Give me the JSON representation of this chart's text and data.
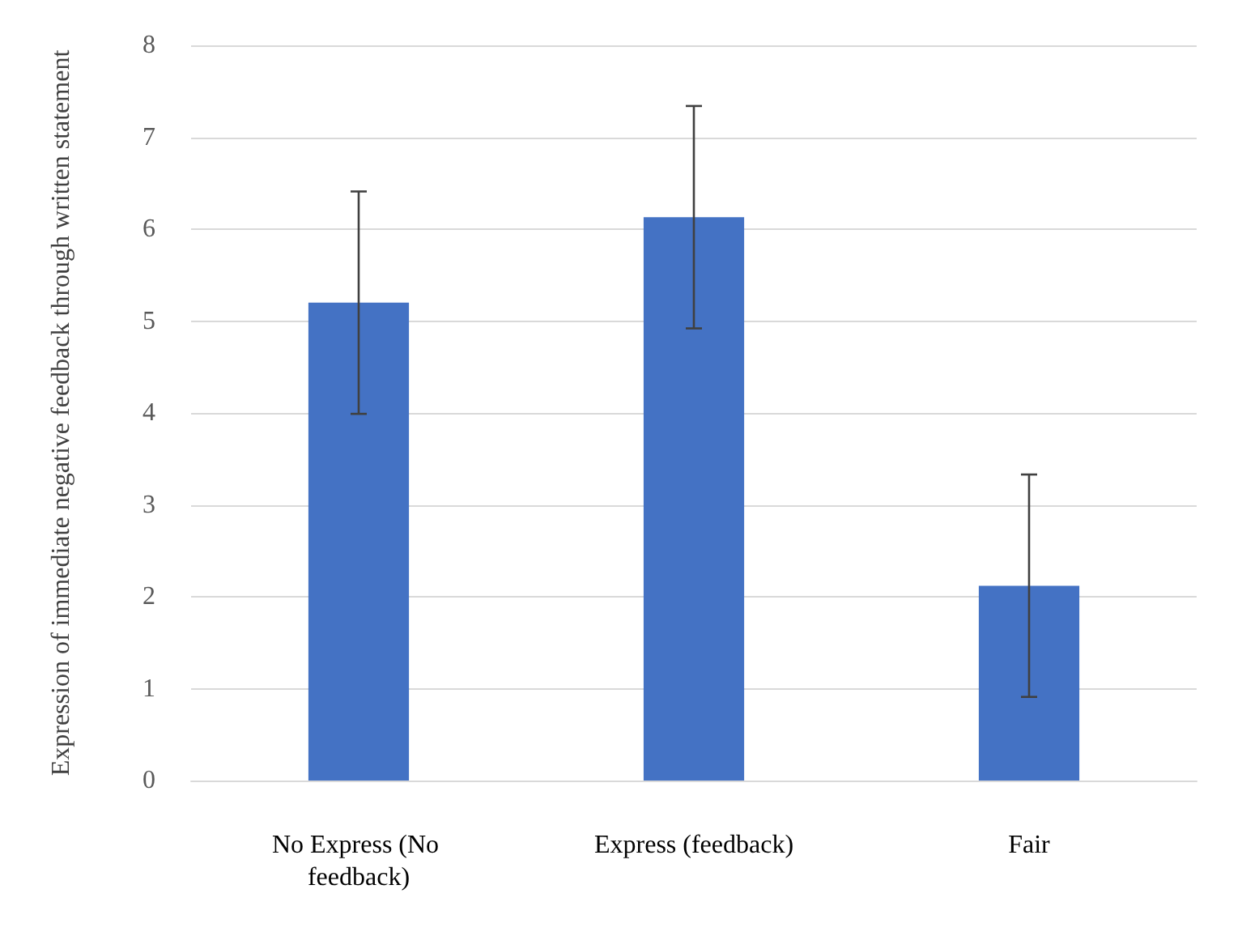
{
  "chart_data": {
    "type": "bar",
    "ylabel": "Expression of immediate negative feedback through written statement",
    "categories": [
      "No Express (No feedback)",
      "Express (feedback)",
      "Fair"
    ],
    "values": [
      5.2,
      6.13,
      2.12
    ],
    "errors": [
      1.21,
      1.21,
      1.21
    ],
    "color": "#4472c4",
    "ylim": [
      0,
      8
    ],
    "yticks": [
      0,
      1,
      2,
      3,
      4,
      5,
      6,
      7,
      8
    ],
    "grid": "y"
  }
}
